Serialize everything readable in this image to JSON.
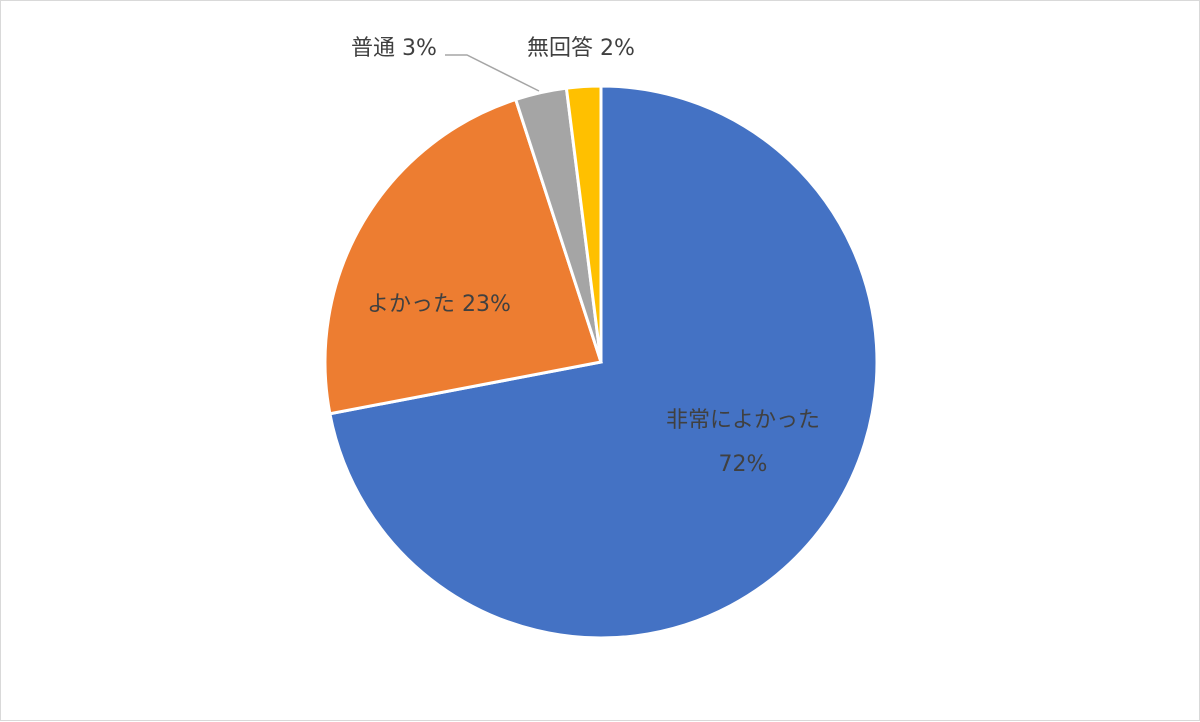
{
  "chart_data": {
    "type": "pie",
    "start_angle_deg": 0,
    "direction": "clockwise",
    "slices": [
      {
        "label": "非常によかった",
        "value": 72,
        "display": "72%",
        "color": "#4472c4"
      },
      {
        "label": "よかった",
        "value": 23,
        "display": "23%",
        "color": "#ed7d31"
      },
      {
        "label": "普通",
        "value": 3,
        "display": "3%",
        "color": "#a5a5a5"
      },
      {
        "label": "無回答",
        "value": 2,
        "display": "2%",
        "color": "#ffc000"
      }
    ]
  }
}
